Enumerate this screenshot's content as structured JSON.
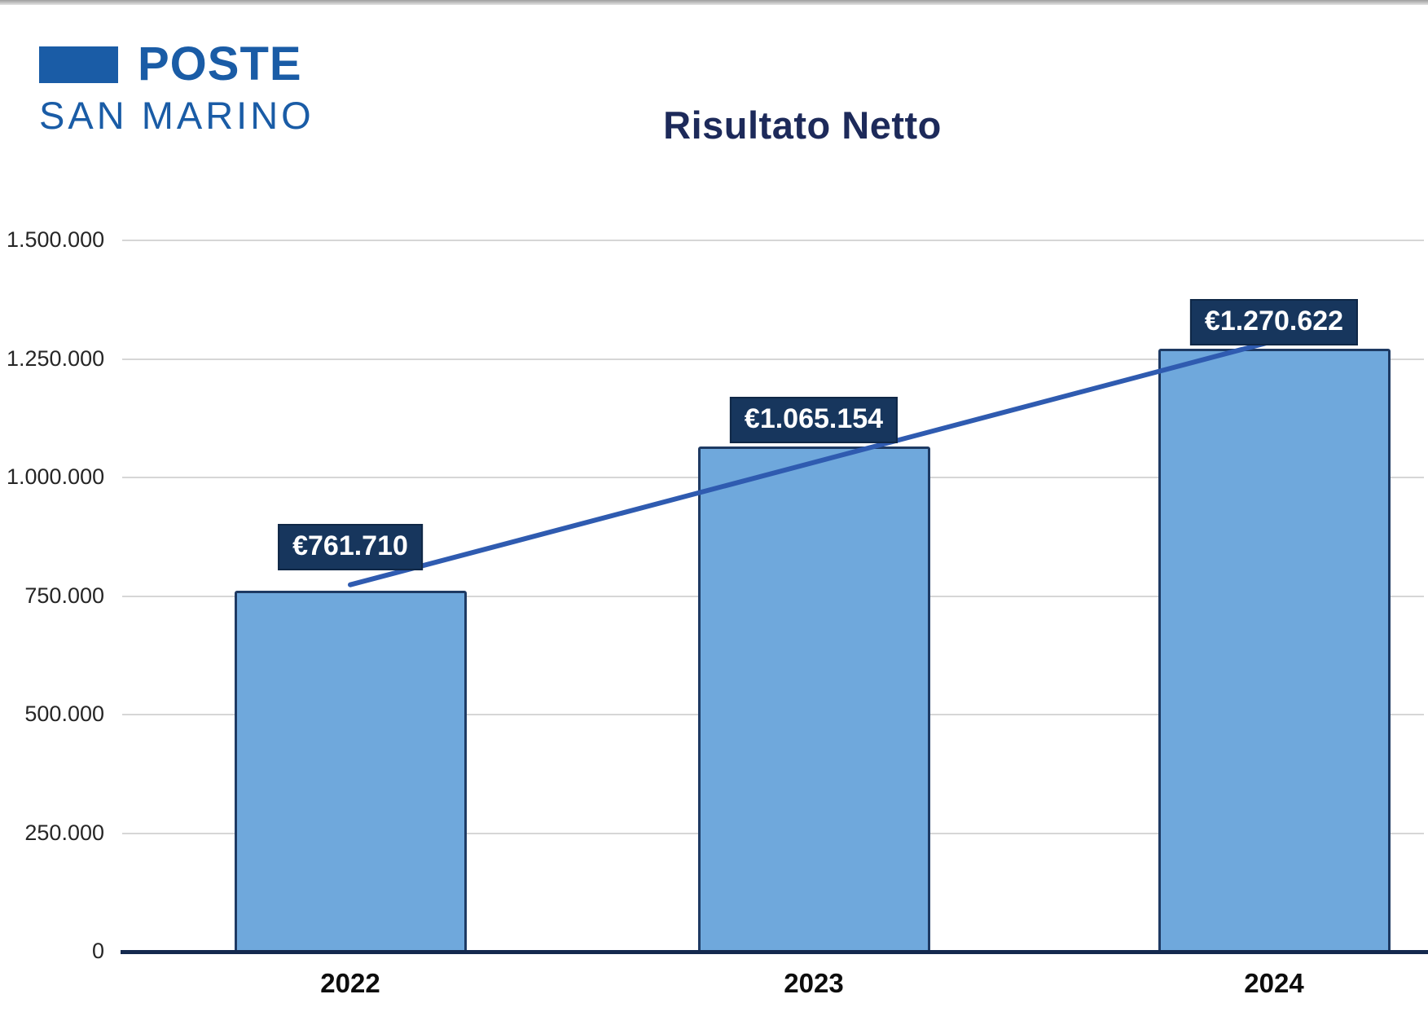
{
  "header": {
    "logo_line1": "POSTE",
    "logo_line2": "SAN MARINO"
  },
  "chart_data": {
    "type": "bar",
    "title": "Risultato Netto",
    "categories": [
      "2022",
      "2023",
      "2024"
    ],
    "values": [
      761710,
      1065154,
      1270622
    ],
    "data_labels": [
      "€761.710",
      "€1.065.154",
      "€1.270.622"
    ],
    "y_tick_values": [
      0,
      250000,
      500000,
      750000,
      1000000,
      1250000,
      1500000
    ],
    "y_tick_labels": [
      "0",
      "250.000",
      "500.000",
      "750.000",
      "1.000.000",
      "1.250.000",
      "1.500.000"
    ],
    "ylim": [
      0,
      1500000
    ],
    "grid": true,
    "legend": "none",
    "trendline": true,
    "colors": {
      "bar_fill": "#6fa8dc",
      "bar_border": "#1e3a63",
      "label_box": "#17365d",
      "label_text": "#ffffff",
      "trend_line": "#2f5bb0",
      "axis_line": "#14294e",
      "gridline": "#d6d6d6",
      "title": "#1d2a5a",
      "logo_blue": "#1a5ca6"
    }
  }
}
